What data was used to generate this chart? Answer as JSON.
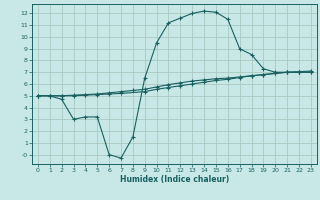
{
  "xlabel": "Humidex (Indice chaleur)",
  "ylabel": "",
  "xlim": [
    -0.5,
    23.5
  ],
  "ylim": [
    -0.8,
    12.8
  ],
  "yticks": [
    0,
    1,
    2,
    3,
    4,
    5,
    6,
    7,
    8,
    9,
    10,
    11,
    12
  ],
  "ytick_labels": [
    "-0",
    "1",
    "2",
    "3",
    "4",
    "5",
    "6",
    "7",
    "8",
    "9",
    "10",
    "11",
    "12"
  ],
  "xticks": [
    0,
    1,
    2,
    3,
    4,
    5,
    6,
    7,
    8,
    9,
    10,
    11,
    12,
    13,
    14,
    15,
    16,
    17,
    18,
    19,
    20,
    21,
    22,
    23
  ],
  "background_color": "#c8e8e8",
  "grid_color": "#a8c8c0",
  "line_color": "#1a6060",
  "line1_x": [
    0,
    1,
    2,
    3,
    4,
    5,
    6,
    7,
    8,
    9,
    10,
    11,
    12,
    13,
    14,
    15,
    16,
    17,
    18,
    19,
    20,
    21,
    22,
    23
  ],
  "line1_y": [
    5.0,
    5.0,
    4.7,
    3.0,
    3.2,
    3.2,
    0.0,
    -0.3,
    1.5,
    6.5,
    9.5,
    11.2,
    11.6,
    12.0,
    12.2,
    12.1,
    11.5,
    9.0,
    8.5,
    7.3,
    7.0,
    7.0,
    7.0,
    7.0
  ],
  "line2_x": [
    0,
    1,
    2,
    3,
    4,
    5,
    6,
    7,
    9,
    10,
    11,
    12,
    13,
    14,
    15,
    16,
    17,
    18,
    19,
    20,
    21,
    22,
    23
  ],
  "line2_y": [
    5.0,
    5.0,
    5.0,
    5.0,
    5.05,
    5.1,
    5.15,
    5.2,
    5.35,
    5.55,
    5.7,
    5.85,
    6.0,
    6.15,
    6.3,
    6.4,
    6.55,
    6.7,
    6.8,
    6.9,
    7.0,
    7.0,
    7.0
  ],
  "line3_x": [
    0,
    1,
    2,
    3,
    4,
    5,
    6,
    7,
    8,
    9,
    10,
    11,
    12,
    13,
    14,
    15,
    16,
    17,
    18,
    19,
    20,
    21,
    22,
    23
  ],
  "line3_y": [
    5.0,
    5.0,
    5.0,
    5.05,
    5.1,
    5.15,
    5.25,
    5.35,
    5.45,
    5.55,
    5.75,
    5.95,
    6.1,
    6.25,
    6.35,
    6.45,
    6.5,
    6.6,
    6.7,
    6.8,
    6.9,
    7.0,
    7.05,
    7.1
  ]
}
